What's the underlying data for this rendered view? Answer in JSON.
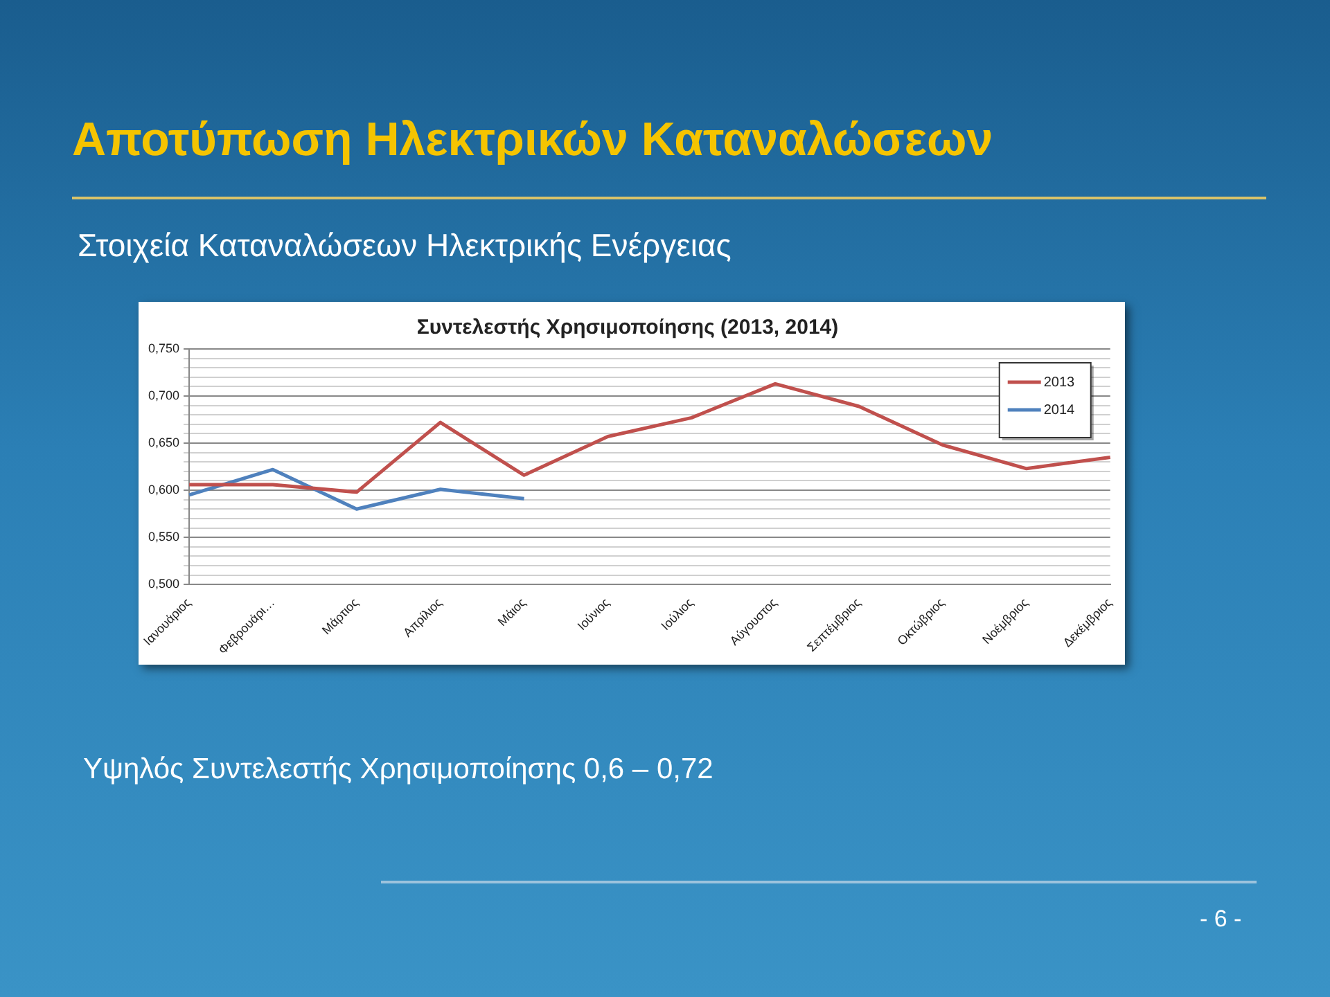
{
  "chart_data": {
    "type": "line",
    "title": "Συντελεστής Χρησιμοποίησης (2013, 2014)",
    "categories": [
      "Ιανουάριος",
      "Φεβρουάρι…",
      "Μάρτιος",
      "Απρίλιος",
      "Μάιος",
      "Ιούνιος",
      "Ιούλιος",
      "Αύγουστος",
      "Σεπτέμβριος",
      "Οκτώβριος",
      "Νοέμβριος",
      "Δεκέμβριος"
    ],
    "series": [
      {
        "name": "2013",
        "color": "#c0504d",
        "values": [
          0.606,
          0.606,
          0.598,
          0.672,
          0.616,
          0.657,
          0.677,
          0.713,
          0.689,
          0.648,
          0.623,
          0.635
        ]
      },
      {
        "name": "2014",
        "color": "#4f81bd",
        "values": [
          0.595,
          0.622,
          0.58,
          0.601,
          0.591,
          null,
          null,
          null,
          null,
          null,
          null,
          null
        ]
      }
    ],
    "ylim": [
      0.5,
      0.75
    ],
    "yticks": [
      {
        "value": 0.5,
        "label": "0,500"
      },
      {
        "value": 0.51,
        "label": null
      },
      {
        "value": 0.52,
        "label": null
      },
      {
        "value": 0.53,
        "label": null
      },
      {
        "value": 0.54,
        "label": null
      },
      {
        "value": 0.55,
        "label": "0,550"
      },
      {
        "value": 0.56,
        "label": null
      },
      {
        "value": 0.57,
        "label": null
      },
      {
        "value": 0.58,
        "label": null
      },
      {
        "value": 0.59,
        "label": null
      },
      {
        "value": 0.6,
        "label": "0,600"
      },
      {
        "value": 0.61,
        "label": null
      },
      {
        "value": 0.62,
        "label": null
      },
      {
        "value": 0.63,
        "label": null
      },
      {
        "value": 0.64,
        "label": null
      },
      {
        "value": 0.65,
        "label": "0,650"
      },
      {
        "value": 0.66,
        "label": null
      },
      {
        "value": 0.67,
        "label": null
      },
      {
        "value": 0.68,
        "label": null
      },
      {
        "value": 0.69,
        "label": null
      },
      {
        "value": 0.7,
        "label": "0,700"
      },
      {
        "value": 0.71,
        "label": null
      },
      {
        "value": 0.72,
        "label": null
      },
      {
        "value": 0.73,
        "label": null
      },
      {
        "value": 0.74,
        "label": null
      },
      {
        "value": 0.75,
        "label": "0,750"
      }
    ],
    "grid": "y",
    "legend": "top right",
    "marker": "none",
    "line_style": "solid",
    "annotations": [
      "Αποτύπωση Ηλεκτρικών Καταναλώσεων",
      "Στοιχεία Καταναλώσεων Ηλεκτρικής Ενέργειας",
      "Υψηλός Συντελεστής Χρησιμοποίησης 0,6 – 0,72",
      "- 6 -"
    ]
  }
}
